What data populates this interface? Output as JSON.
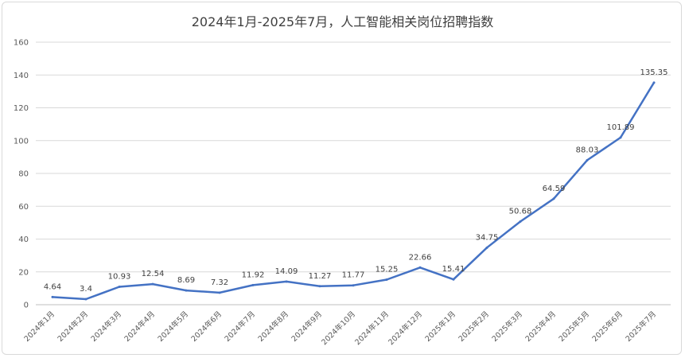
{
  "chart_data": {
    "type": "line",
    "title": "2024年1月-2025年7月，人工智能相关岗位招聘指数",
    "categories": [
      "2024年1月",
      "2024年2月",
      "2024年3月",
      "2024年4月",
      "2024年5月",
      "2024年6月",
      "2024年7月",
      "2024年8月",
      "2024年9月",
      "2024年10月",
      "2024年11月",
      "2024年12月",
      "2025年1月",
      "2025年2月",
      "2025年3月",
      "2025年4月",
      "2025年5月",
      "2025年6月",
      "2025年7月"
    ],
    "values": [
      4.64,
      3.4,
      10.93,
      12.54,
      8.69,
      7.32,
      11.92,
      14.09,
      11.27,
      11.77,
      15.25,
      22.66,
      15.41,
      34.75,
      50.68,
      64.59,
      88.03,
      101.89,
      135.35
    ],
    "data_labels": [
      "4.64",
      "3.4",
      "10.93",
      "12.54",
      "8.69",
      "7.32",
      "11.92",
      "14.09",
      "11.27",
      "11.77",
      "15.25",
      "22.66",
      "15.41",
      "34.75",
      "50.68",
      "64.59",
      "88.03",
      "101.89",
      "135.35"
    ],
    "ylim": [
      0,
      160
    ],
    "yticks": [
      "0",
      "20",
      "40",
      "60",
      "80",
      "100",
      "120",
      "140",
      "160"
    ],
    "grid": true,
    "xlabel": "",
    "ylabel": "",
    "line_color": "#4472c4",
    "grid_color": "#d9d9d9"
  }
}
